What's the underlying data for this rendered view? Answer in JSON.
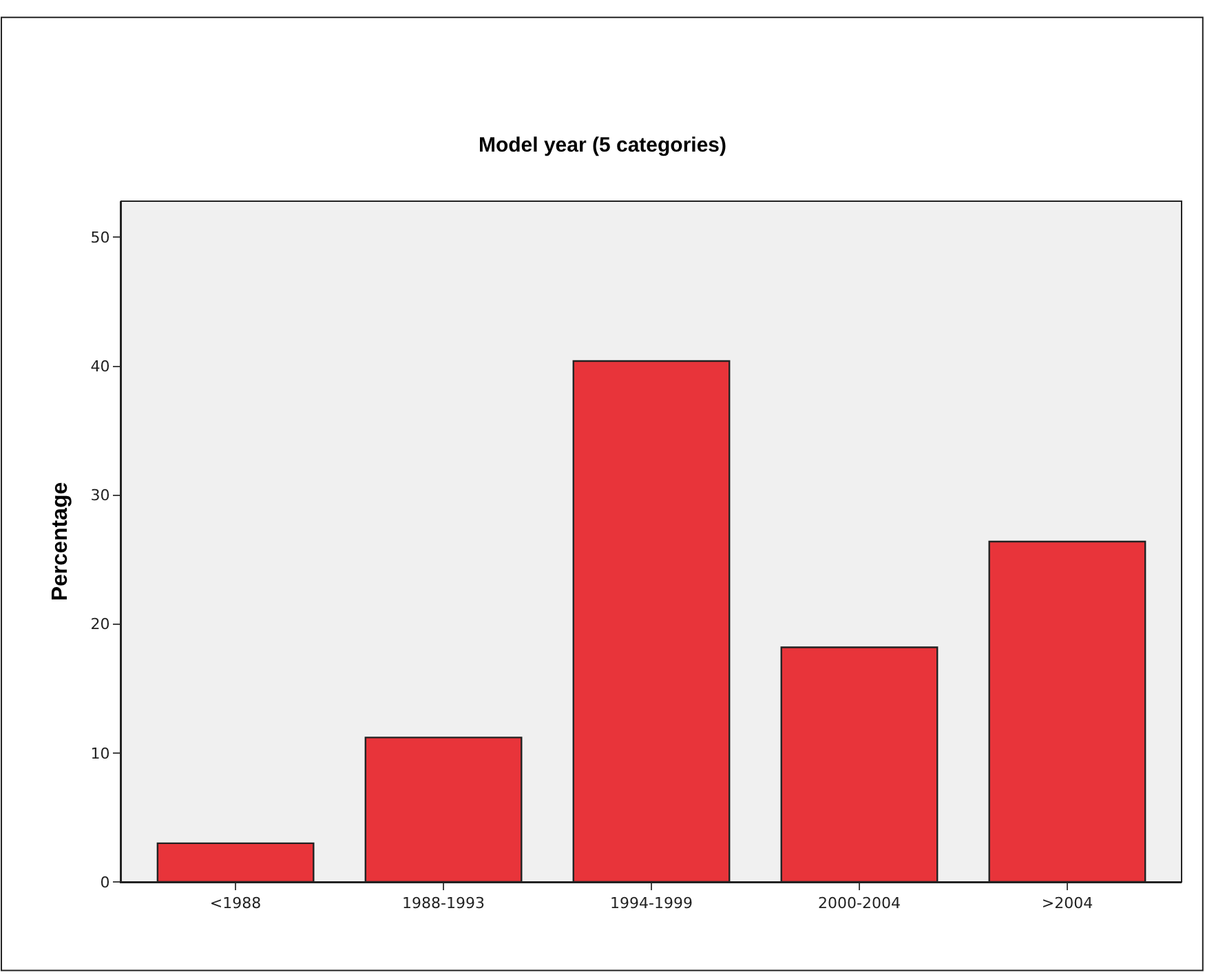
{
  "chart_data": {
    "type": "bar",
    "title": "Model year (5 categories)",
    "ylabel": "Percentage",
    "categories": [
      "<1988",
      "1988-1993",
      "1994-1999",
      "2000-2004",
      ">2004"
    ],
    "values": [
      3.0,
      11.2,
      40.4,
      18.2,
      26.4
    ],
    "color": "#e8343a",
    "ylim": [
      0,
      52.8
    ],
    "yticks": [
      0,
      10,
      20,
      30,
      40,
      50
    ],
    "grid": false
  }
}
